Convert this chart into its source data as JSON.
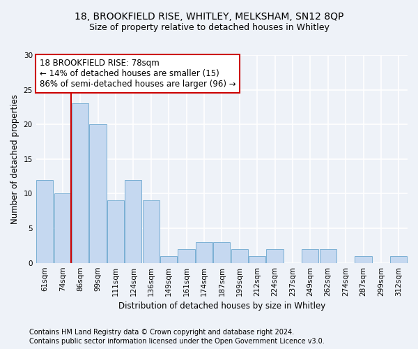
{
  "title_line1": "18, BROOKFIELD RISE, WHITLEY, MELKSHAM, SN12 8QP",
  "title_line2": "Size of property relative to detached houses in Whitley",
  "xlabel": "Distribution of detached houses by size in Whitley",
  "ylabel": "Number of detached properties",
  "categories": [
    "61sqm",
    "74sqm",
    "86sqm",
    "99sqm",
    "111sqm",
    "124sqm",
    "136sqm",
    "149sqm",
    "161sqm",
    "174sqm",
    "187sqm",
    "199sqm",
    "212sqm",
    "224sqm",
    "237sqm",
    "249sqm",
    "262sqm",
    "274sqm",
    "287sqm",
    "299sqm",
    "312sqm"
  ],
  "values": [
    12,
    10,
    23,
    20,
    9,
    12,
    9,
    1,
    2,
    3,
    3,
    2,
    1,
    2,
    0,
    2,
    2,
    0,
    1,
    0,
    1
  ],
  "bar_color": "#c5d8f0",
  "bar_edge_color": "#7aafd4",
  "vline_x_idx": 1.5,
  "vline_color": "#cc0000",
  "annotation_text": "18 BROOKFIELD RISE: 78sqm\n← 14% of detached houses are smaller (15)\n86% of semi-detached houses are larger (96) →",
  "annotation_box_facecolor": "#ffffff",
  "annotation_box_edgecolor": "#cc0000",
  "ylim": [
    0,
    30
  ],
  "yticks": [
    0,
    5,
    10,
    15,
    20,
    25,
    30
  ],
  "footer_line1": "Contains HM Land Registry data © Crown copyright and database right 2024.",
  "footer_line2": "Contains public sector information licensed under the Open Government Licence v3.0.",
  "bg_color": "#eef2f8",
  "plot_bg_color": "#eef2f8",
  "grid_color": "#ffffff",
  "title_fontsize": 10,
  "subtitle_fontsize": 9,
  "axis_label_fontsize": 8.5,
  "tick_fontsize": 7.5,
  "annotation_fontsize": 8.5,
  "footer_fontsize": 7
}
